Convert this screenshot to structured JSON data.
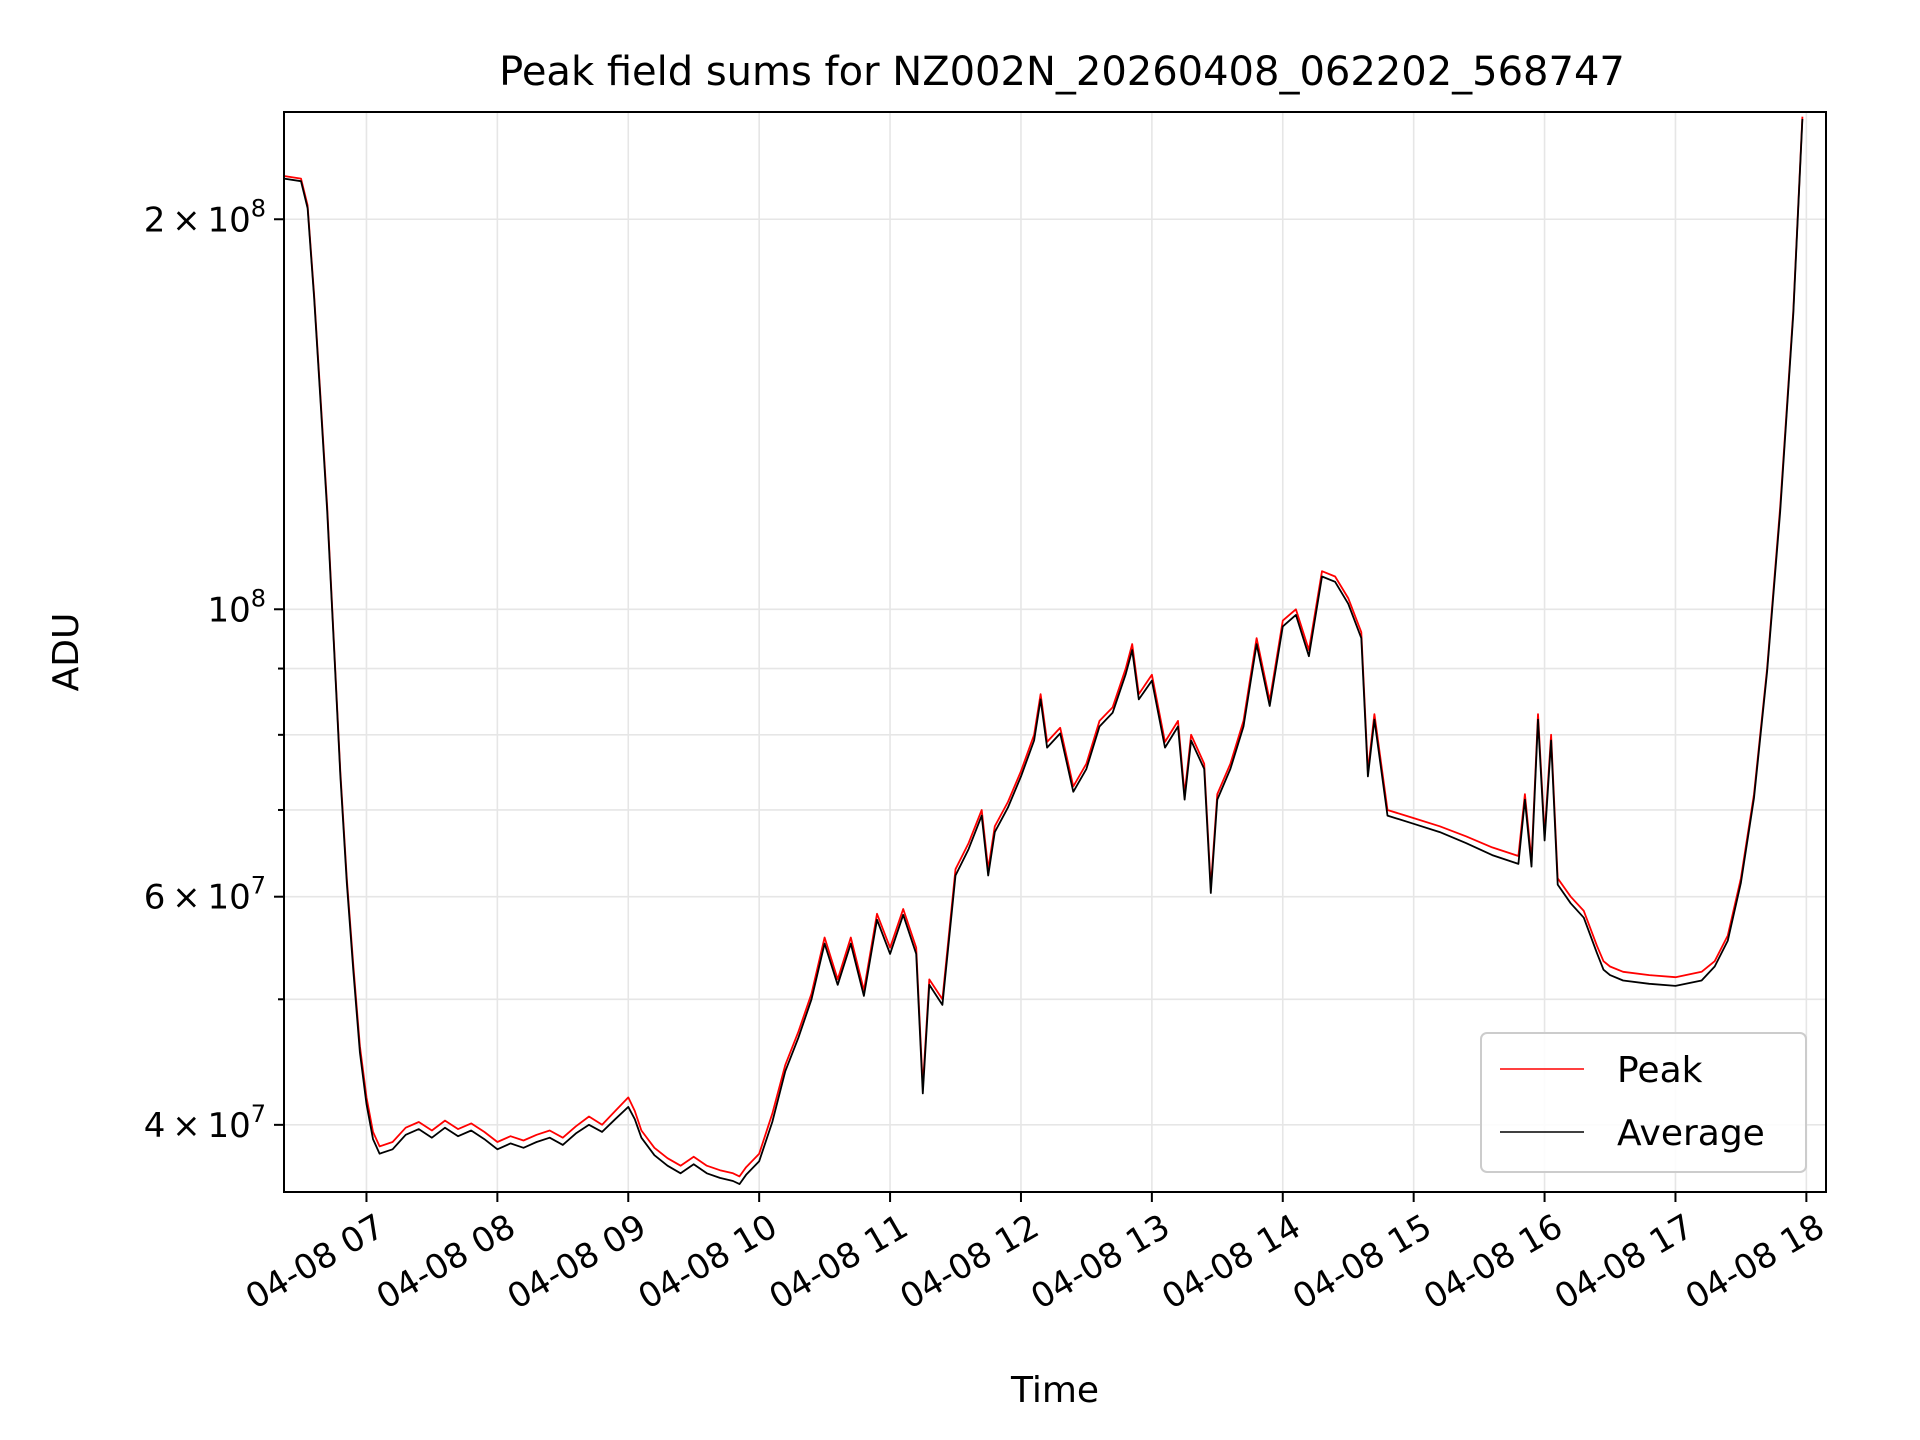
{
  "chart_data": {
    "type": "line",
    "title": "Peak field sums for NZ002N_20260408_062202_568747",
    "xlabel": "Time",
    "ylabel": "ADU",
    "yscale": "log",
    "grid": true,
    "legend_position": "lower-right",
    "x_unit": "hours since 04-08 00:00",
    "xlim": [
      6.37,
      18.15
    ],
    "ylim": [
      35500000,
      242000000
    ],
    "x_ticks": [
      7,
      8,
      9,
      10,
      11,
      12,
      13,
      14,
      15,
      16,
      17,
      18
    ],
    "x_tick_labels": [
      "04-08 07",
      "04-08 08",
      "04-08 09",
      "04-08 10",
      "04-08 11",
      "04-08 12",
      "04-08 13",
      "04-08 14",
      "04-08 15",
      "04-08 16",
      "04-08 17",
      "04-08 18"
    ],
    "y_major_ticks": [
      40000000,
      60000000,
      100000000,
      200000000
    ],
    "y_major_tick_labels": [
      {
        "base": "4 × 10",
        "exp": "7"
      },
      {
        "base": "6 × 10",
        "exp": "7"
      },
      {
        "base": "10",
        "exp": "8"
      },
      {
        "base": "2 × 10",
        "exp": "8"
      }
    ],
    "y_minor_ticks": [
      50000000,
      70000000,
      80000000,
      90000000
    ],
    "series": [
      {
        "name": "Peak",
        "color": "#ff0000",
        "x": [
          6.37,
          6.5,
          6.55,
          6.6,
          6.65,
          6.7,
          6.75,
          6.8,
          6.85,
          6.9,
          6.95,
          7.0,
          7.05,
          7.1,
          7.2,
          7.3,
          7.4,
          7.5,
          7.6,
          7.7,
          7.8,
          7.9,
          8.0,
          8.1,
          8.2,
          8.3,
          8.4,
          8.5,
          8.6,
          8.7,
          8.8,
          8.9,
          9.0,
          9.05,
          9.1,
          9.2,
          9.3,
          9.4,
          9.5,
          9.6,
          9.7,
          9.8,
          9.85,
          9.9,
          10.0,
          10.1,
          10.2,
          10.3,
          10.4,
          10.5,
          10.6,
          10.7,
          10.8,
          10.9,
          11.0,
          11.1,
          11.2,
          11.25,
          11.3,
          11.4,
          11.5,
          11.6,
          11.7,
          11.75,
          11.8,
          11.9,
          12.0,
          12.1,
          12.15,
          12.2,
          12.3,
          12.4,
          12.5,
          12.6,
          12.7,
          12.8,
          12.85,
          12.9,
          13.0,
          13.1,
          13.2,
          13.25,
          13.3,
          13.4,
          13.45,
          13.5,
          13.6,
          13.7,
          13.8,
          13.9,
          14.0,
          14.1,
          14.2,
          14.3,
          14.4,
          14.5,
          14.6,
          14.65,
          14.7,
          14.8,
          15.0,
          15.2,
          15.4,
          15.6,
          15.8,
          15.85,
          15.9,
          15.95,
          16.0,
          16.05,
          16.1,
          16.2,
          16.3,
          16.4,
          16.45,
          16.5,
          16.6,
          16.8,
          17.0,
          17.2,
          17.3,
          17.4,
          17.5,
          17.6,
          17.7,
          17.8,
          17.9,
          17.97
        ],
        "values": [
          216000000,
          215000000,
          205000000,
          175000000,
          145000000,
          120000000,
          95000000,
          75000000,
          62000000,
          53000000,
          46000000,
          42000000,
          39500000,
          38500000,
          38800000,
          39800000,
          40200000,
          39600000,
          40300000,
          39700000,
          40100000,
          39500000,
          38800000,
          39200000,
          38900000,
          39300000,
          39600000,
          39100000,
          39900000,
          40600000,
          40000000,
          41000000,
          42000000,
          41000000,
          39600000,
          38400000,
          37700000,
          37200000,
          37800000,
          37200000,
          36900000,
          36700000,
          36500000,
          37100000,
          38000000,
          40800000,
          44500000,
          47200000,
          50500000,
          55800000,
          51800000,
          55800000,
          50800000,
          58200000,
          54800000,
          58700000,
          54800000,
          42800000,
          51800000,
          50000000,
          63000000,
          66000000,
          70000000,
          63000000,
          68000000,
          71000000,
          75000000,
          80000000,
          86000000,
          79000000,
          81000000,
          73000000,
          76000000,
          82000000,
          84000000,
          90000000,
          94000000,
          86000000,
          89000000,
          79000000,
          82000000,
          72000000,
          80000000,
          76000000,
          61000000,
          72000000,
          76000000,
          82000000,
          95000000,
          85000000,
          98000000,
          100000000,
          93000000,
          107000000,
          106000000,
          102000000,
          96000000,
          75000000,
          83000000,
          70000000,
          69000000,
          68000000,
          66800000,
          65500000,
          64500000,
          72000000,
          64000000,
          83000000,
          67000000,
          80000000,
          62000000,
          60000000,
          58500000,
          55000000,
          53500000,
          53000000,
          52500000,
          52200000,
          52000000,
          52500000,
          53500000,
          56000000,
          62000000,
          72000000,
          90000000,
          120000000,
          170000000,
          240000000
        ]
      },
      {
        "name": "Average",
        "color": "#000000",
        "x": [
          6.37,
          6.5,
          6.55,
          6.6,
          6.65,
          6.7,
          6.75,
          6.8,
          6.85,
          6.9,
          6.95,
          7.0,
          7.05,
          7.1,
          7.2,
          7.3,
          7.4,
          7.5,
          7.6,
          7.7,
          7.8,
          7.9,
          8.0,
          8.1,
          8.2,
          8.3,
          8.4,
          8.5,
          8.6,
          8.7,
          8.8,
          8.9,
          9.0,
          9.05,
          9.1,
          9.2,
          9.3,
          9.4,
          9.5,
          9.6,
          9.7,
          9.8,
          9.85,
          9.9,
          10.0,
          10.1,
          10.2,
          10.3,
          10.4,
          10.5,
          10.6,
          10.7,
          10.8,
          10.9,
          11.0,
          11.1,
          11.2,
          11.25,
          11.3,
          11.4,
          11.5,
          11.6,
          11.7,
          11.75,
          11.8,
          11.9,
          12.0,
          12.1,
          12.15,
          12.2,
          12.3,
          12.4,
          12.5,
          12.6,
          12.7,
          12.8,
          12.85,
          12.9,
          13.0,
          13.1,
          13.2,
          13.25,
          13.3,
          13.4,
          13.45,
          13.5,
          13.6,
          13.7,
          13.8,
          13.9,
          14.0,
          14.1,
          14.2,
          14.3,
          14.4,
          14.5,
          14.6,
          14.65,
          14.7,
          14.8,
          15.0,
          15.2,
          15.4,
          15.6,
          15.8,
          15.85,
          15.9,
          15.95,
          16.0,
          16.05,
          16.1,
          16.2,
          16.3,
          16.4,
          16.45,
          16.5,
          16.6,
          16.8,
          17.0,
          17.2,
          17.3,
          17.4,
          17.5,
          17.6,
          17.7,
          17.8,
          17.9,
          17.97
        ],
        "values": [
          215000000,
          214000000,
          204000000,
          174000000,
          144000000,
          119000000,
          94500000,
          74500000,
          61500000,
          52500000,
          45500000,
          41500000,
          39000000,
          38000000,
          38300000,
          39300000,
          39700000,
          39100000,
          39800000,
          39200000,
          39600000,
          39000000,
          38300000,
          38700000,
          38400000,
          38800000,
          39100000,
          38600000,
          39400000,
          40000000,
          39500000,
          40400000,
          41300000,
          40400000,
          39100000,
          37900000,
          37200000,
          36700000,
          37300000,
          36700000,
          36400000,
          36200000,
          36000000,
          36600000,
          37500000,
          40200000,
          44000000,
          46700000,
          50000000,
          55200000,
          51300000,
          55200000,
          50300000,
          57600000,
          54200000,
          58100000,
          54200000,
          42300000,
          51300000,
          49500000,
          62300000,
          65300000,
          69300000,
          62300000,
          67300000,
          70300000,
          74300000,
          79200000,
          85200000,
          78200000,
          80200000,
          72300000,
          75300000,
          81200000,
          83200000,
          89100000,
          93000000,
          85200000,
          88100000,
          78200000,
          81200000,
          71300000,
          79200000,
          75300000,
          60400000,
          71300000,
          75300000,
          81200000,
          94000000,
          84200000,
          97000000,
          99000000,
          92000000,
          106000000,
          105000000,
          101000000,
          95000000,
          74300000,
          82200000,
          69300000,
          68300000,
          67300000,
          66000000,
          64600000,
          63600000,
          71300000,
          63300000,
          82200000,
          66300000,
          79200000,
          61300000,
          59300000,
          57800000,
          54300000,
          52700000,
          52200000,
          51700000,
          51400000,
          51200000,
          51700000,
          53000000,
          55500000,
          61500000,
          71500000,
          89500000,
          119000000,
          169000000,
          239000000
        ]
      }
    ]
  }
}
